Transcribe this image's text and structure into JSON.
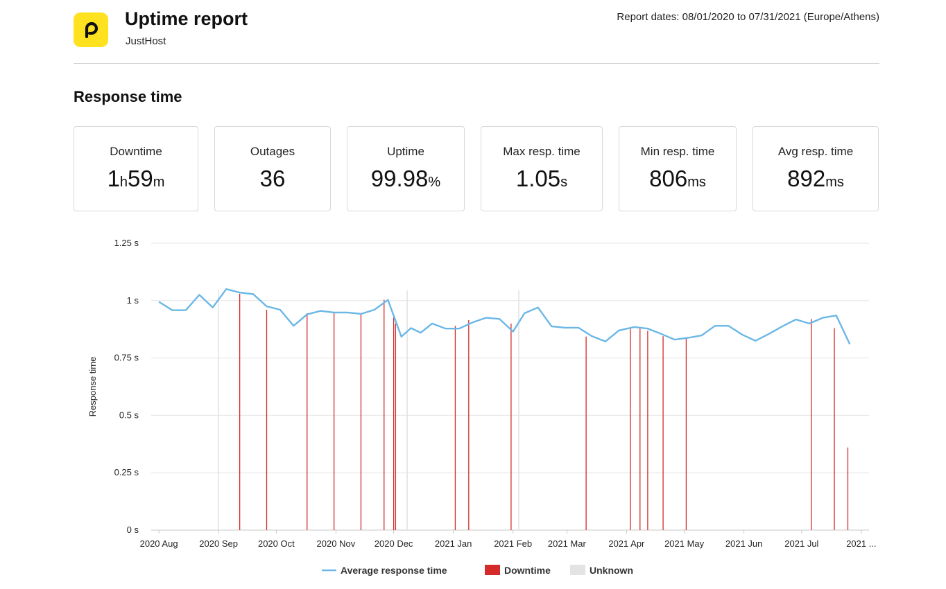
{
  "header": {
    "logo_icon": "pingdom-p-icon",
    "logo_color": "#ffe21f",
    "title": "Uptime report",
    "subtitle": "JustHost",
    "report_dates": "Report dates: 08/01/2020 to 07/31/2021 (Europe/Athens)"
  },
  "section_title": "Response time",
  "stats": [
    {
      "label": "Downtime",
      "parts": [
        {
          "v": "1",
          "u": "h"
        },
        {
          "v": "59",
          "u": "m"
        }
      ]
    },
    {
      "label": "Outages",
      "parts": [
        {
          "v": "36",
          "u": ""
        }
      ]
    },
    {
      "label": "Uptime",
      "parts": [
        {
          "v": "99.98",
          "u": "%"
        }
      ]
    },
    {
      "label": "Max resp. time",
      "parts": [
        {
          "v": "1.05",
          "u": "s"
        }
      ]
    },
    {
      "label": "Min resp. time",
      "parts": [
        {
          "v": "806",
          "u": "ms"
        }
      ]
    },
    {
      "label": "Avg resp. time",
      "parts": [
        {
          "v": "892",
          "u": "ms"
        }
      ]
    }
  ],
  "chart_data": {
    "type": "line",
    "ylabel": "Response time",
    "ylim": [
      0,
      1.25
    ],
    "y_ticks": [
      {
        "v": 0,
        "label": "0 s"
      },
      {
        "v": 0.25,
        "label": "0.25 s"
      },
      {
        "v": 0.5,
        "label": "0.5 s"
      },
      {
        "v": 0.75,
        "label": "0.75 s"
      },
      {
        "v": 1,
        "label": "1 s"
      },
      {
        "v": 1.25,
        "label": "1.25 s"
      }
    ],
    "x_tick_labels": [
      "2020 Aug",
      "2020 Sep",
      "2020 Oct",
      "2020 Nov",
      "2020 Dec",
      "2021 Jan",
      "2021 Feb",
      "2021 Mar",
      "2021 Apr",
      "2021 May",
      "2021 Jun",
      "2021 Jul",
      "2021 ..."
    ],
    "x_tick_dates": [
      "2020-08-01",
      "2020-09-01",
      "2020-10-01",
      "2020-11-01",
      "2020-12-01",
      "2021-01-01",
      "2021-02-01",
      "2021-03-01",
      "2021-04-01",
      "2021-05-01",
      "2021-06-01",
      "2021-07-01",
      "2021-08-01"
    ],
    "x_range": [
      "2020-07-28",
      "2021-08-05"
    ],
    "grid": true,
    "legend_position": "bottom",
    "series": [
      {
        "name": "Average response time",
        "color": "#6bb7e6",
        "x": [
          "2020-08-01",
          "2020-08-08",
          "2020-08-15",
          "2020-08-22",
          "2020-08-29",
          "2020-09-05",
          "2020-09-12",
          "2020-09-19",
          "2020-09-26",
          "2020-10-03",
          "2020-10-10",
          "2020-10-17",
          "2020-10-24",
          "2020-10-31",
          "2020-11-07",
          "2020-11-14",
          "2020-11-21",
          "2020-11-28",
          "2020-12-01",
          "2020-12-05",
          "2020-12-10",
          "2020-12-15",
          "2020-12-21",
          "2020-12-28",
          "2021-01-04",
          "2021-01-11",
          "2021-01-18",
          "2021-01-25",
          "2021-02-01",
          "2021-02-07",
          "2021-02-14",
          "2021-02-21",
          "2021-02-28",
          "2021-03-07",
          "2021-03-14",
          "2021-03-21",
          "2021-03-28",
          "2021-04-05",
          "2021-04-12",
          "2021-04-19",
          "2021-04-26",
          "2021-05-03",
          "2021-05-10",
          "2021-05-17",
          "2021-05-24",
          "2021-05-31",
          "2021-06-07",
          "2021-06-14",
          "2021-06-21",
          "2021-06-28",
          "2021-07-05",
          "2021-07-12",
          "2021-07-19",
          "2021-07-26"
        ],
        "y": [
          0.995,
          0.958,
          0.958,
          1.025,
          0.97,
          1.05,
          1.035,
          1.028,
          0.975,
          0.96,
          0.89,
          0.94,
          0.955,
          0.948,
          0.948,
          0.942,
          0.96,
          1.003,
          0.935,
          0.843,
          0.88,
          0.86,
          0.9,
          0.878,
          0.878,
          0.905,
          0.925,
          0.92,
          0.865,
          0.945,
          0.97,
          0.888,
          0.882,
          0.882,
          0.845,
          0.822,
          0.87,
          0.885,
          0.878,
          0.855,
          0.83,
          0.838,
          0.848,
          0.89,
          0.89,
          0.852,
          0.825,
          0.855,
          0.888,
          0.918,
          0.9,
          0.925,
          0.935,
          0.81
        ]
      }
    ],
    "downtime": {
      "name": "Downtime",
      "color": "#d42a2a",
      "x": [
        "2020-09-12",
        "2020-09-26",
        "2020-10-17",
        "2020-10-31",
        "2020-11-14",
        "2020-11-26",
        "2020-12-01",
        "2020-12-02",
        "2021-01-02",
        "2021-01-09",
        "2021-01-31",
        "2021-03-11",
        "2021-04-03",
        "2021-04-08",
        "2021-04-12",
        "2021-04-20",
        "2021-05-02",
        "2021-07-06",
        "2021-07-18",
        "2021-07-25"
      ],
      "y": [
        1.03,
        0.96,
        0.945,
        0.948,
        0.942,
        1.003,
        0.93,
        0.9,
        0.89,
        0.915,
        0.9,
        0.843,
        0.882,
        0.878,
        0.868,
        0.845,
        0.84,
        0.92,
        0.88,
        0.36
      ]
    },
    "unknown": {
      "name": "Unknown",
      "color": "#e3e3e3",
      "x": [
        "2020-09-01",
        "2020-12-08",
        "2021-02-04"
      ]
    }
  }
}
